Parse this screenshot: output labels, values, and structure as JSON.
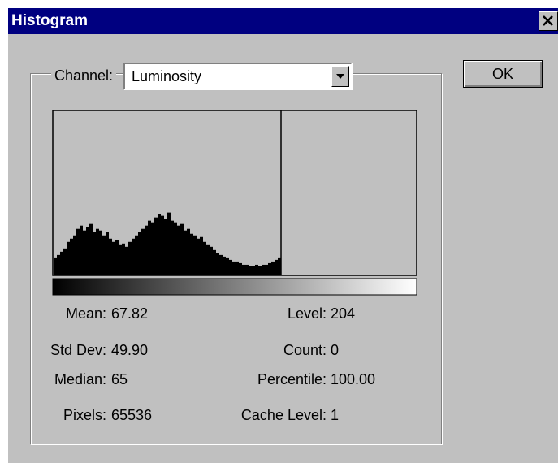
{
  "dialog": {
    "title": "Histogram",
    "channel_label": "Channel:",
    "channel_value": "Luminosity",
    "ok_button": "OK",
    "histogram": {
      "ylim": [
        0,
        100
      ],
      "values": [
        10,
        12,
        14,
        16,
        20,
        22,
        24,
        28,
        30,
        27,
        29,
        31,
        26,
        28,
        27,
        24,
        26,
        22,
        20,
        21,
        18,
        19,
        17,
        20,
        22,
        24,
        26,
        28,
        30,
        33,
        32,
        35,
        37,
        36,
        34,
        38,
        33,
        32,
        30,
        31,
        27,
        28,
        25,
        24,
        22,
        23,
        20,
        18,
        17,
        15,
        13,
        12,
        11,
        10,
        9,
        8,
        8,
        7,
        6,
        6,
        5,
        5,
        6,
        5,
        6,
        6,
        7,
        8,
        9,
        10
      ]
    },
    "stats_left": [
      {
        "label": "Mean:",
        "value": "67.82"
      },
      {
        "label": "Std Dev:",
        "value": "49.90"
      },
      {
        "label": "Median:",
        "value": "65"
      },
      {
        "label": "Pixels:",
        "value": "65536"
      }
    ],
    "stats_right": [
      {
        "label": "Level:",
        "value": "204"
      },
      {
        "label": "Count:",
        "value": "0"
      },
      {
        "label": "Percentile:",
        "value": "100.00"
      },
      {
        "label": "Cache Level:",
        "value": "1"
      }
    ]
  }
}
